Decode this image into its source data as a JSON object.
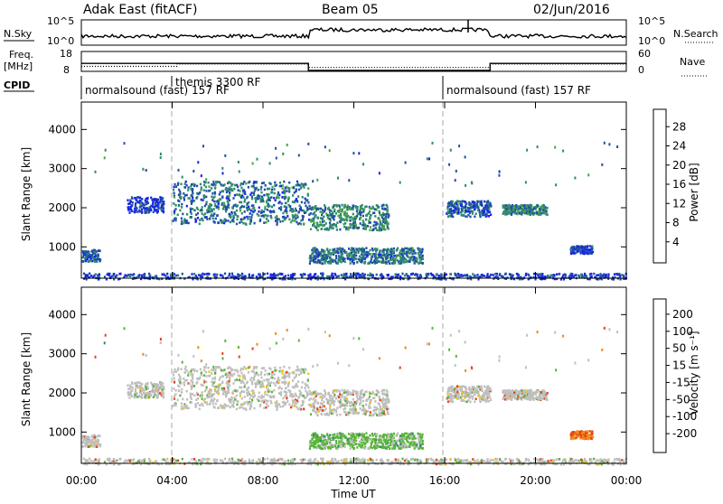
{
  "header": {
    "radar": "Adak East (fitACF)",
    "beam": "Beam 05",
    "date": "02/Jun/2016"
  },
  "top_panels": {
    "nsky_label": "N.Sky",
    "nsky_ticks": [
      "10^5",
      "10^0"
    ],
    "nsearch_label": "N.Search",
    "nsearch_ticks": [
      "10^5",
      "10^0"
    ],
    "freq_label": "Freq.",
    "freq_unit": "[MHz]",
    "freq_ticks": [
      "18",
      "8"
    ],
    "nave_label": "Nave",
    "nave_ticks": [
      "60",
      "0"
    ],
    "cpid_label": "CPID",
    "cpid_entries": [
      {
        "text": "normalsound (fast) 157 RF",
        "start_h": 0
      },
      {
        "text": "themis 3300 RF",
        "start_h": 4
      },
      {
        "text": "normalsound (fast) 157 RF",
        "start_h": 16
      }
    ],
    "freq_series": [
      {
        "h0": 0,
        "h1": 10,
        "mhz": 12
      },
      {
        "h0": 10,
        "h1": 18,
        "mhz": 8.5
      },
      {
        "h0": 18,
        "h1": 24,
        "mhz": 12
      }
    ],
    "nave_series": [
      {
        "h0": 0,
        "h1": 4.2,
        "n": 15
      },
      {
        "h0": 4.2,
        "h1": 10,
        "n": 22
      },
      {
        "h0": 10,
        "h1": 18,
        "n": 12
      },
      {
        "h0": 18,
        "h1": 24,
        "n": 22
      }
    ]
  },
  "chart_data": {
    "type": "heatmap",
    "x_label": "Time UT",
    "x_ticks": [
      "00:00",
      "04:00",
      "08:00",
      "12:00",
      "16:00",
      "20:00",
      "00:00"
    ],
    "x_range_h": [
      0,
      24
    ],
    "y_label": "Slant Range [km]",
    "y_ticks": [
      "1000",
      "2000",
      "3000",
      "4000"
    ],
    "y_range_km": [
      200,
      4700
    ],
    "power_panel": {
      "colorbar_label": "Power [dB]",
      "colorbar_ticks": [
        "4",
        "8",
        "12",
        "16",
        "20",
        "24",
        "28"
      ],
      "colors": [
        "#1a22e6",
        "#1f4fa8",
        "#2f8a6e",
        "#4aa24a",
        "#9bc832",
        "#e6c419",
        "#f08a14",
        "#e6401a",
        "#d41414"
      ]
    },
    "velocity_panel": {
      "colorbar_label": "Velocity [m s⁻¹]",
      "colorbar_ticks": [
        "200",
        "100",
        "50",
        "15",
        "-15",
        "-50",
        "-100",
        "-200"
      ],
      "colors": [
        "#1a22c8",
        "#2a6ab4",
        "#2f8a6e",
        "#5ab43a",
        "#bfbfbf",
        "#e6c419",
        "#f08a14",
        "#e6401a",
        "#d41414"
      ]
    },
    "echo_regions": [
      {
        "name": "band-a",
        "h": [
          4.0,
          10.0
        ],
        "km": [
          1600,
          2700
        ],
        "power": 10,
        "vel": 0
      },
      {
        "name": "band-b",
        "h": [
          10.0,
          13.5
        ],
        "km": [
          1450,
          2100
        ],
        "power": 12,
        "vel": 0
      },
      {
        "name": "band-c",
        "h": [
          10.0,
          15.0
        ],
        "km": [
          600,
          1000
        ],
        "power": 10,
        "vel": 40
      },
      {
        "name": "band-d",
        "h": [
          16.0,
          18.0
        ],
        "km": [
          1800,
          2200
        ],
        "power": 8,
        "vel": 0
      },
      {
        "name": "band-e",
        "h": [
          18.5,
          20.5
        ],
        "km": [
          1850,
          2100
        ],
        "power": 12,
        "vel": 0
      },
      {
        "name": "band-f",
        "h": [
          0.0,
          0.8
        ],
        "km": [
          650,
          950
        ],
        "power": 8,
        "vel": 0
      },
      {
        "name": "band-g",
        "h": [
          21.5,
          22.5
        ],
        "km": [
          850,
          1050
        ],
        "power": 6,
        "vel": -60
      },
      {
        "name": "band-h",
        "h": [
          2.0,
          3.6
        ],
        "km": [
          1900,
          2300
        ],
        "power": 6,
        "vel": -20
      },
      {
        "name": "ground",
        "h": [
          0.0,
          24.0
        ],
        "km": [
          200,
          350
        ],
        "power": 6,
        "vel": 5
      }
    ]
  }
}
